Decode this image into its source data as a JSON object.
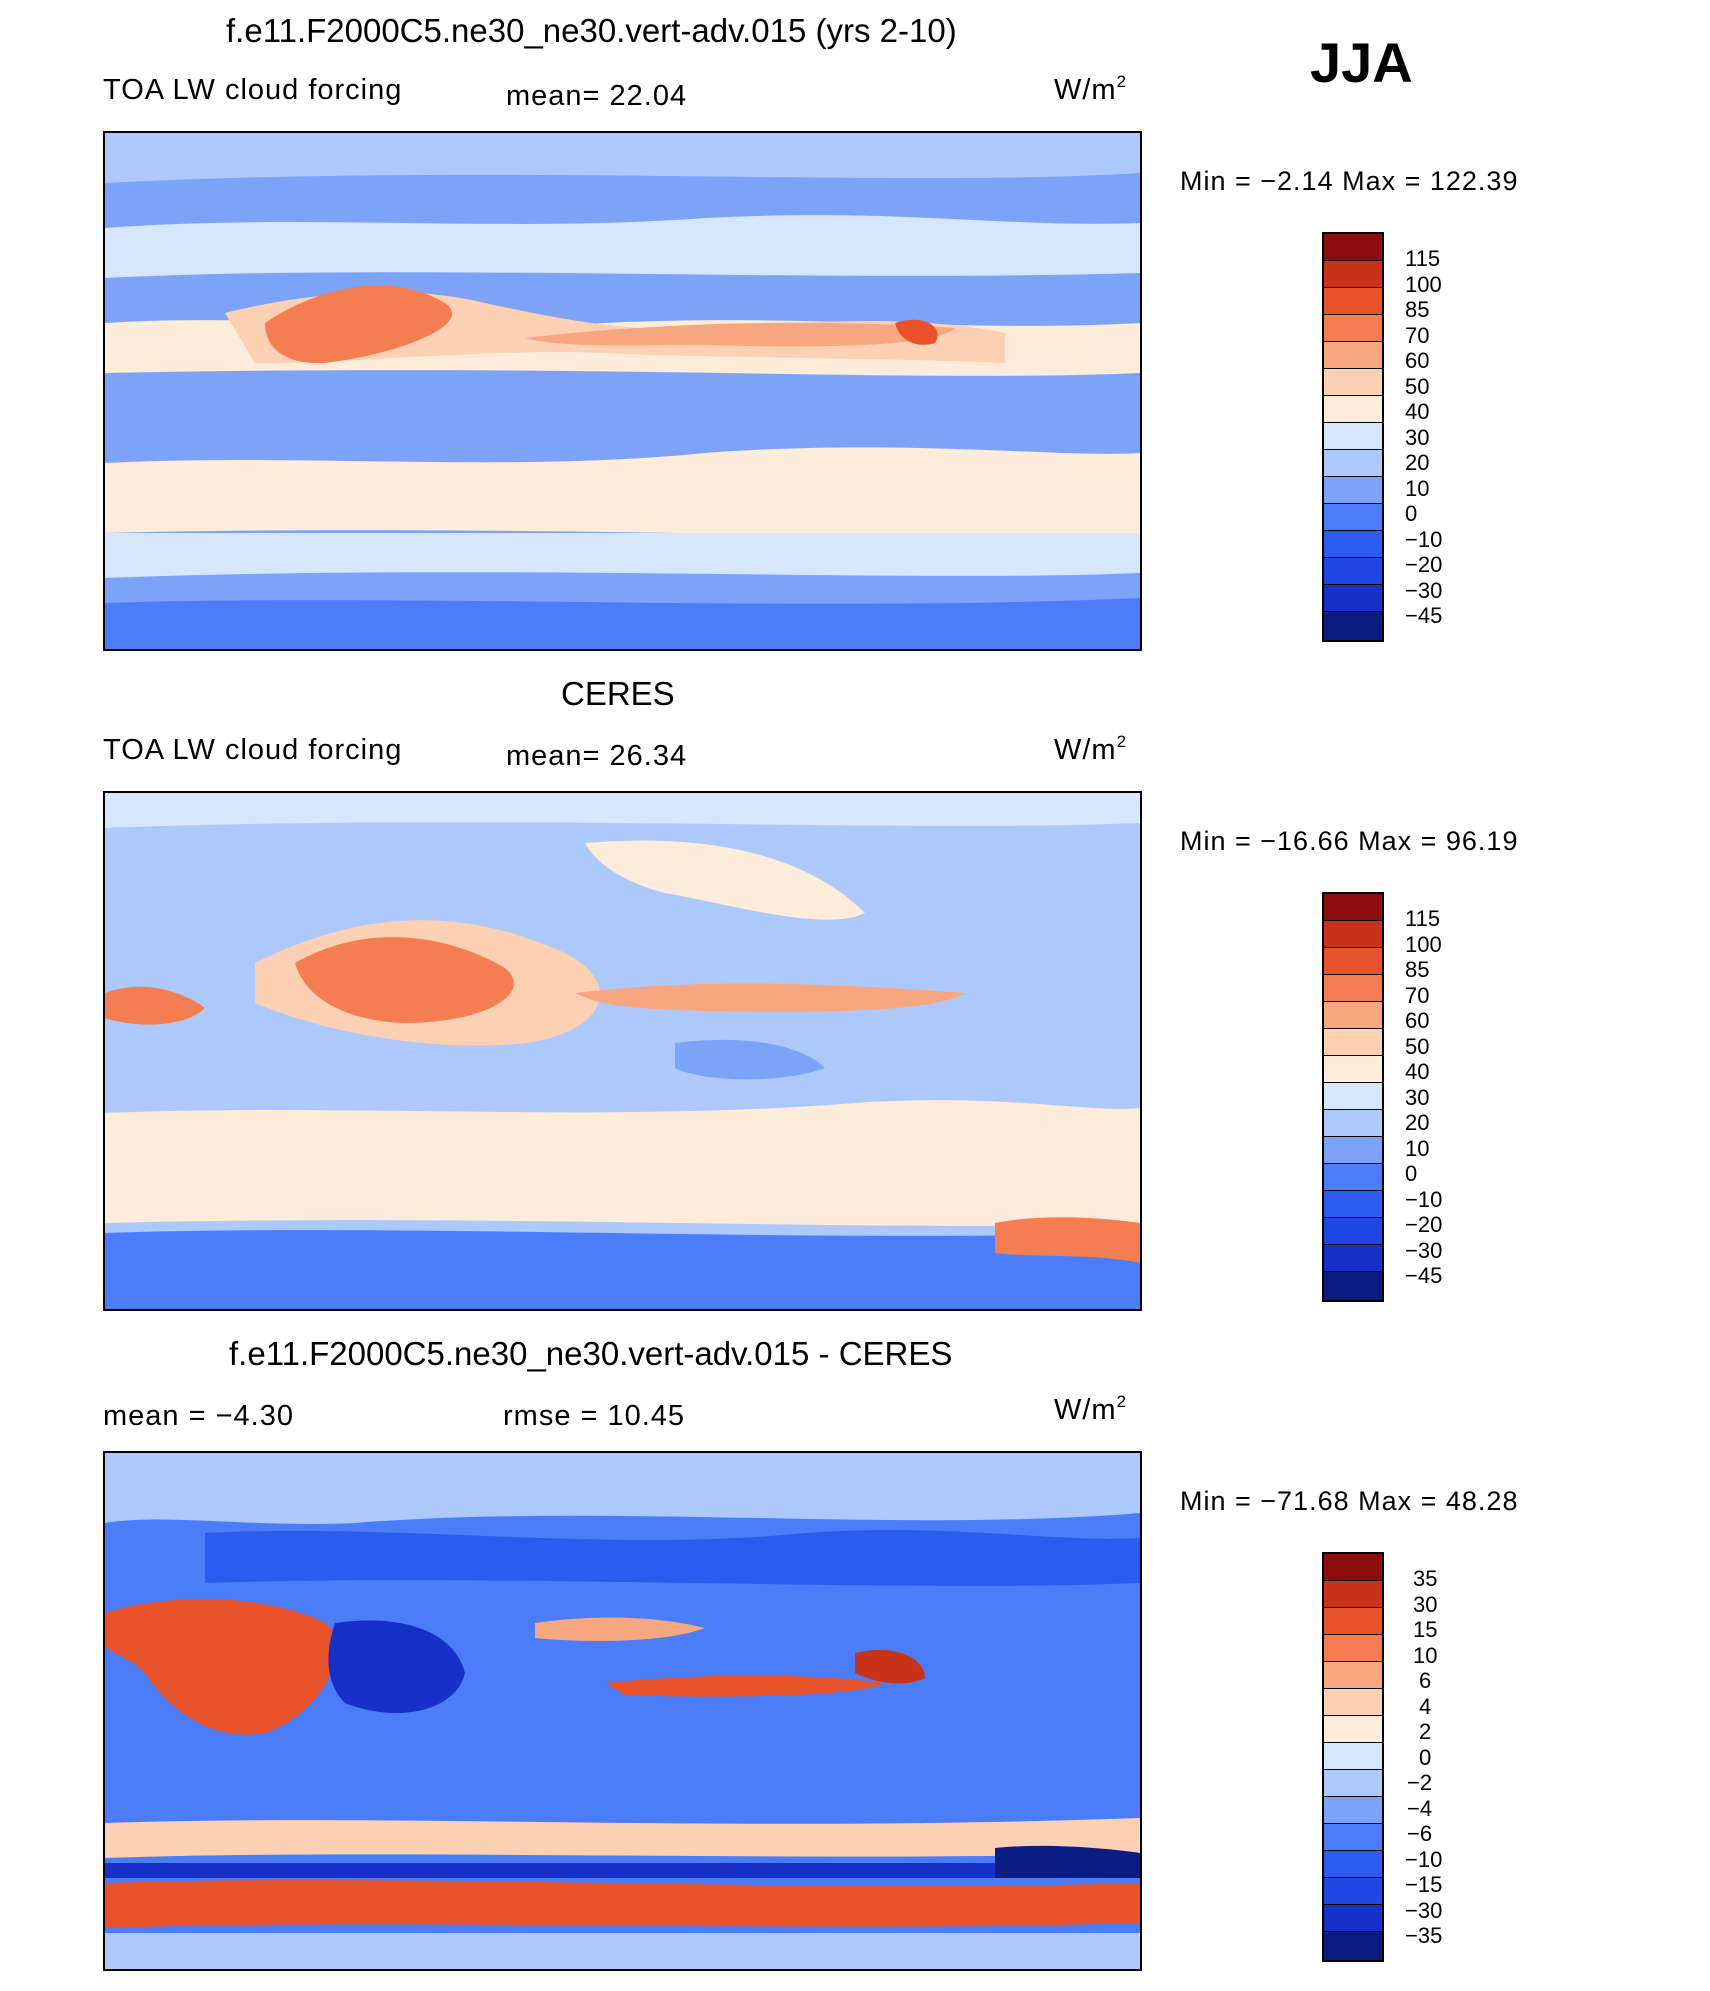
{
  "season": "JJA",
  "palettes": {
    "abs": [
      "#0b1d82",
      "#1630c8",
      "#2046e6",
      "#2b5cf0",
      "#4a7df7",
      "#7da3f8",
      "#adc8fb",
      "#d6e6fd",
      "#fcecd9",
      "#fbd0b3",
      "#f7a780",
      "#f47e52",
      "#e8532b",
      "#c9331a",
      "#8c0d0d"
    ],
    "diff": [
      "#0b1d82",
      "#1630c8",
      "#2046e6",
      "#2b5cf0",
      "#4a7df7",
      "#7da3f8",
      "#adc8fb",
      "#d6e6fd",
      "#fcecd9",
      "#fbd0b3",
      "#f7a780",
      "#f47e52",
      "#e8532b",
      "#c9331a",
      "#8c0d0d"
    ]
  },
  "chart_data": [
    {
      "type": "heatmap",
      "id": "model",
      "title": "f.e11.F2000C5.ne30_ne30.vert-adv.015 (yrs 2-10)",
      "left_label": "TOA LW cloud forcing",
      "mean_text": "mean=   22.04",
      "units_base": "W/m",
      "units_sup": "2",
      "minmax_text": "Min  =    −2.14  Max  =  122.39",
      "colorbar_levels": [
        "115",
        "100",
        "85",
        "70",
        "60",
        "50",
        "40",
        "30",
        "20",
        "10",
        "0",
        "−10",
        "−20",
        "−30",
        "−45"
      ]
    },
    {
      "type": "heatmap",
      "id": "obs",
      "title": "CERES",
      "left_label": "TOA LW cloud forcing",
      "mean_text": "mean=   26.34",
      "units_base": "W/m",
      "units_sup": "2",
      "minmax_text": "Min  =  −16.66  Max  =    96.19",
      "colorbar_levels": [
        "115",
        "100",
        "85",
        "70",
        "60",
        "50",
        "40",
        "30",
        "20",
        "10",
        "0",
        "−10",
        "−20",
        "−30",
        "−45"
      ]
    },
    {
      "type": "heatmap",
      "id": "diff",
      "title": "f.e11.F2000C5.ne30_ne30.vert-adv.015 - CERES",
      "left_label": "mean  =    −4.30",
      "mean_text": "rmse  =    10.45",
      "units_base": "W/m",
      "units_sup": "2",
      "minmax_text": "Min  =  −71.68  Max  =    48.28",
      "colorbar_levels": [
        "35",
        "30",
        "15",
        "10",
        "6",
        "4",
        "2",
        "0",
        "−2",
        "−4",
        "−6",
        "−10",
        "−15",
        "−30",
        "−35"
      ]
    }
  ]
}
